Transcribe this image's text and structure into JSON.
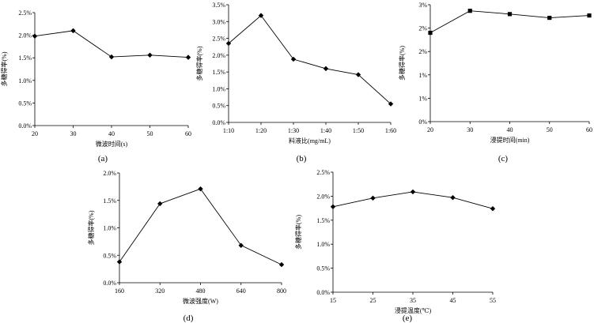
{
  "chart_data": [
    {
      "id": "a",
      "type": "line",
      "panel_label": "(a)",
      "xlabel": "微波时间(s)",
      "ylabel": "多糖得率(%)",
      "marker": "diamond",
      "x_ticks": [
        "20",
        "30",
        "40",
        "50",
        "60"
      ],
      "y_ticks": [
        "0.0%",
        "0.5%",
        "1.0%",
        "1.5%",
        "2.0%",
        "2.5%"
      ],
      "ylim": [
        0,
        2.5
      ],
      "x": [
        20,
        30,
        40,
        50,
        60
      ],
      "y": [
        1.98,
        2.1,
        1.52,
        1.56,
        1.51
      ]
    },
    {
      "id": "b",
      "type": "line",
      "panel_label": "(b)",
      "xlabel": "料液比(mg/mL)",
      "ylabel": "多糖得率(%)",
      "marker": "diamond",
      "x_ticks": [
        "1:10",
        "1:20",
        "1:30",
        "1:40",
        "1:50",
        "1:60"
      ],
      "y_ticks": [
        "0.0%",
        "0.5%",
        "1.0%",
        "1.5%",
        "2.0%",
        "2.5%",
        "3.0%",
        "3.5%"
      ],
      "ylim": [
        0,
        3.5
      ],
      "x": [
        0,
        1,
        2,
        3,
        4,
        5
      ],
      "y": [
        2.35,
        3.18,
        1.88,
        1.6,
        1.42,
        0.55
      ]
    },
    {
      "id": "c",
      "type": "line",
      "panel_label": "(c)",
      "xlabel": "浸提时间(min)",
      "ylabel": "多糖得率(%)",
      "marker": "square",
      "x_ticks": [
        "20",
        "30",
        "40",
        "50",
        "60"
      ],
      "y_ticks": [
        "0%",
        "1%",
        "1%",
        "2%",
        "2%",
        "3%"
      ],
      "ylim": [
        0,
        2.5
      ],
      "x": [
        20,
        30,
        40,
        50,
        60
      ],
      "y": [
        1.9,
        2.37,
        2.3,
        2.22,
        2.27
      ]
    },
    {
      "id": "d",
      "type": "line",
      "panel_label": "(d)",
      "xlabel": "微波强度(W)",
      "ylabel": "多糖得率(%)",
      "marker": "diamond",
      "x_ticks": [
        "160",
        "320",
        "480",
        "640",
        "800"
      ],
      "y_ticks": [
        "0.0%",
        "0.5%",
        "1.0%",
        "1.5%",
        "2.0%"
      ],
      "ylim": [
        0,
        2.0
      ],
      "x": [
        160,
        320,
        480,
        640,
        800
      ],
      "y": [
        0.38,
        1.44,
        1.71,
        0.68,
        0.33
      ]
    },
    {
      "id": "e",
      "type": "line",
      "panel_label": "(e)",
      "xlabel": "浸提温度(℃)",
      "ylabel": "多糖得率(%)",
      "marker": "diamond",
      "x_ticks": [
        "15",
        "25",
        "35",
        "45",
        "55"
      ],
      "y_ticks": [
        "0.0%",
        "0.5%",
        "1.0%",
        "1.5%",
        "2.0%",
        "2.5%"
      ],
      "ylim": [
        0,
        2.5
      ],
      "x": [
        15,
        25,
        35,
        45,
        55
      ],
      "y": [
        1.78,
        1.96,
        2.09,
        1.97,
        1.74
      ]
    }
  ]
}
